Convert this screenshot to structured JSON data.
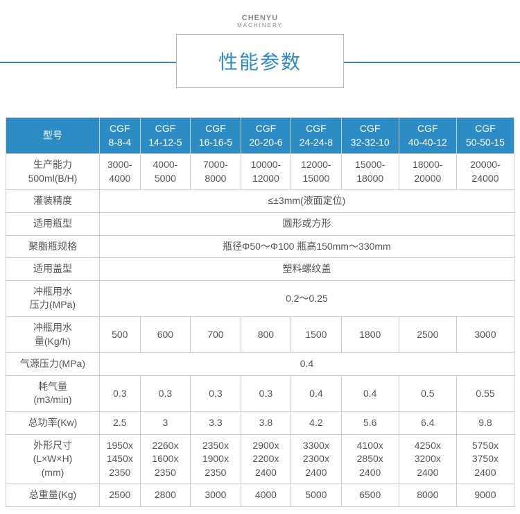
{
  "brand": {
    "name": "CHENYU",
    "sub": "MACHINERY"
  },
  "title": "性能参数",
  "table": {
    "header_label": "型号",
    "models": [
      "CGF\n8-8-4",
      "CGF\n14-12-5",
      "CGF\n16-16-5",
      "CGF\n20-20-6",
      "CGF\n24-24-8",
      "CGF\n32-32-10",
      "CGF\n40-40-12",
      "CGF\n50-50-15"
    ],
    "rows": [
      {
        "label": "生产能力\n500ml(B/H)",
        "cells": [
          "3000-\n4000",
          "4000-\n5000",
          "7000-\n8000",
          "10000-\n12000",
          "12000-\n15000",
          "15000-\n18000",
          "18000-\n20000",
          "20000-\n24000"
        ]
      },
      {
        "label": "灌装精度",
        "span": "≤±3mm(液面定位)"
      },
      {
        "label": "适用瓶型",
        "span": "圆形或方形"
      },
      {
        "label": "聚脂瓶规格",
        "span": "瓶径Φ50～Φ100   瓶高150mm～330mm"
      },
      {
        "label": "适用盖型",
        "span": "塑料螺纹盖"
      },
      {
        "label": "冲瓶用水\n压力(MPa)",
        "span": "0.2～0.25"
      },
      {
        "label": "冲瓶用水\n量(Kg/h)",
        "cells": [
          "500",
          "600",
          "700",
          "800",
          "1500",
          "1800",
          "2500",
          "3000"
        ]
      },
      {
        "label": "气源压力(MPa)",
        "span": "0.4"
      },
      {
        "label": "耗气量\n(m3/min)",
        "cells": [
          "0.3",
          "0.3",
          "0.3",
          "0.3",
          "0.4",
          "0.4",
          "0.5",
          "0.55"
        ]
      },
      {
        "label": "总功率(Kw)",
        "cells": [
          "2.5",
          "3",
          "3.3",
          "3.8",
          "4.2",
          "5.6",
          "6.4",
          "9.8"
        ]
      },
      {
        "label": "外形尺寸\n(L×W×H)\n(mm)",
        "cells": [
          "1950x\n1450x\n2350",
          "2260x\n1600x\n2350",
          "2350x\n1900x\n2350",
          "2900x\n2200x\n2400",
          "3300x\n2300x\n2400",
          "4100x\n2850x\n2400",
          "4250x\n3200x\n2400",
          "5750x\n3750x\n2400"
        ]
      },
      {
        "label": "总重量(Kg)",
        "cells": [
          "2500",
          "2800",
          "3000",
          "4000",
          "5000",
          "6500",
          "8000",
          "9000"
        ]
      }
    ],
    "colors": {
      "header_bg": "#2e8cc5",
      "header_fg": "#ffffff",
      "border": "#cccccc",
      "title_fg": "#2e8cc5"
    }
  }
}
